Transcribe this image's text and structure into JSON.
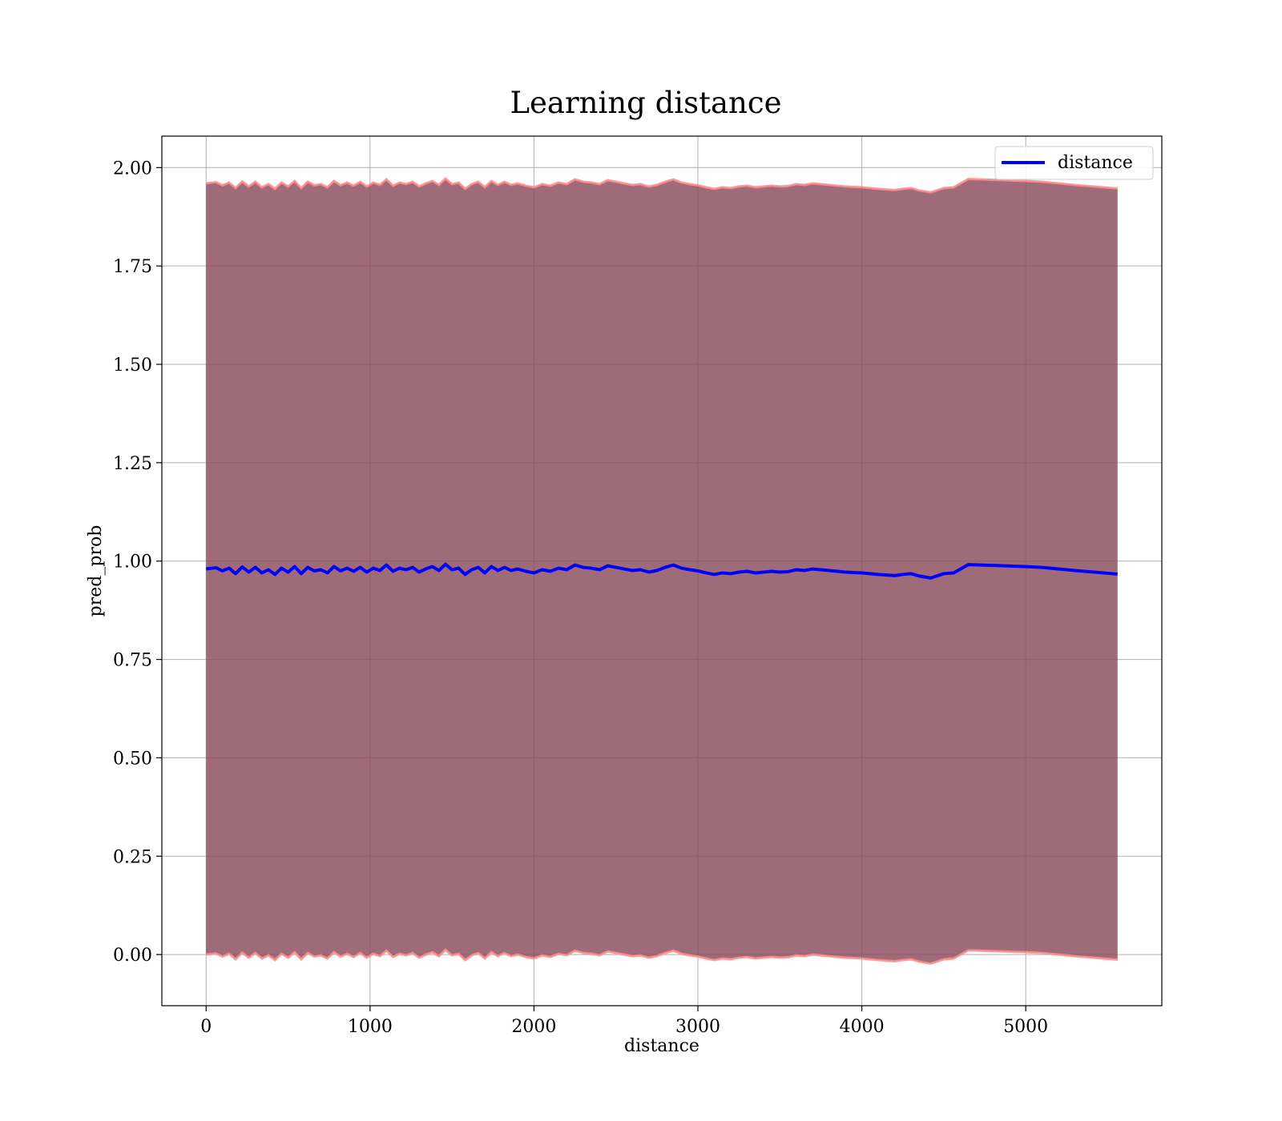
{
  "chart_data": {
    "type": "line",
    "title": "Learning distance",
    "xlabel": "distance",
    "ylabel": "pred_prob",
    "xlim": [
      -270,
      5830
    ],
    "ylim": [
      -0.13,
      2.08
    ],
    "xticks": [
      0,
      1000,
      2000,
      3000,
      4000,
      5000
    ],
    "xtick_labels": [
      "0",
      "1000",
      "2000",
      "3000",
      "4000",
      "5000"
    ],
    "yticks": [
      0.0,
      0.25,
      0.5,
      0.75,
      1.0,
      1.25,
      1.5,
      1.75,
      2.0
    ],
    "ytick_labels": [
      "0.00",
      "0.25",
      "0.50",
      "0.75",
      "1.00",
      "1.25",
      "1.50",
      "1.75",
      "2.00"
    ],
    "grid": true,
    "legend_position": "top-right",
    "colors": {
      "line": "#0000ff",
      "band_fill": "#8b4a5a",
      "band_edge": "#ff8c8c",
      "grid": "#b0b0b0",
      "frame": "#000000"
    },
    "series": [
      {
        "name": "distance",
        "type": "line",
        "x": [
          0,
          60,
          100,
          140,
          180,
          220,
          260,
          300,
          340,
          380,
          420,
          460,
          500,
          540,
          580,
          620,
          660,
          700,
          740,
          780,
          820,
          860,
          900,
          940,
          980,
          1020,
          1060,
          1100,
          1140,
          1180,
          1220,
          1260,
          1300,
          1340,
          1380,
          1420,
          1460,
          1500,
          1540,
          1580,
          1620,
          1660,
          1700,
          1740,
          1780,
          1820,
          1860,
          1900,
          1950,
          2000,
          2050,
          2100,
          2150,
          2200,
          2250,
          2300,
          2350,
          2400,
          2450,
          2500,
          2550,
          2600,
          2650,
          2700,
          2750,
          2800,
          2850,
          2900,
          2950,
          3000,
          3050,
          3100,
          3150,
          3200,
          3250,
          3300,
          3350,
          3400,
          3450,
          3500,
          3550,
          3600,
          3650,
          3700,
          3800,
          3900,
          4000,
          4100,
          4200,
          4250,
          4300,
          4350,
          4420,
          4500,
          4560,
          4650,
          4800,
          5000,
          5100,
          5300,
          5560
        ],
        "values": [
          0.98,
          0.983,
          0.975,
          0.982,
          0.968,
          0.985,
          0.972,
          0.984,
          0.97,
          0.978,
          0.966,
          0.982,
          0.972,
          0.986,
          0.968,
          0.984,
          0.975,
          0.978,
          0.97,
          0.986,
          0.975,
          0.982,
          0.974,
          0.984,
          0.972,
          0.982,
          0.976,
          0.99,
          0.974,
          0.982,
          0.978,
          0.984,
          0.972,
          0.98,
          0.986,
          0.976,
          0.992,
          0.978,
          0.982,
          0.966,
          0.978,
          0.984,
          0.97,
          0.986,
          0.976,
          0.984,
          0.976,
          0.98,
          0.974,
          0.97,
          0.978,
          0.974,
          0.982,
          0.978,
          0.99,
          0.984,
          0.982,
          0.978,
          0.988,
          0.984,
          0.98,
          0.976,
          0.978,
          0.972,
          0.976,
          0.984,
          0.99,
          0.982,
          0.978,
          0.975,
          0.97,
          0.966,
          0.97,
          0.968,
          0.972,
          0.974,
          0.97,
          0.972,
          0.974,
          0.972,
          0.973,
          0.978,
          0.976,
          0.98,
          0.976,
          0.972,
          0.97,
          0.966,
          0.963,
          0.966,
          0.968,
          0.962,
          0.957,
          0.968,
          0.97,
          0.991,
          0.989,
          0.986,
          0.984,
          0.976,
          0.967
        ]
      }
    ],
    "band": {
      "x": [
        0,
        60,
        100,
        140,
        180,
        220,
        260,
        300,
        340,
        380,
        420,
        460,
        500,
        540,
        580,
        620,
        660,
        700,
        740,
        780,
        820,
        860,
        900,
        940,
        980,
        1020,
        1060,
        1100,
        1140,
        1180,
        1220,
        1260,
        1300,
        1340,
        1380,
        1420,
        1460,
        1500,
        1540,
        1580,
        1620,
        1660,
        1700,
        1740,
        1780,
        1820,
        1860,
        1900,
        1950,
        2000,
        2050,
        2100,
        2150,
        2200,
        2250,
        2300,
        2350,
        2400,
        2450,
        2500,
        2550,
        2600,
        2650,
        2700,
        2750,
        2800,
        2850,
        2900,
        2950,
        3000,
        3050,
        3100,
        3150,
        3200,
        3250,
        3300,
        3350,
        3400,
        3450,
        3500,
        3550,
        3600,
        3650,
        3700,
        3800,
        3900,
        4000,
        4100,
        4200,
        4250,
        4300,
        4350,
        4420,
        4500,
        4560,
        4650,
        4800,
        5000,
        5100,
        5300,
        5560
      ],
      "upper": [
        1.96,
        1.963,
        1.955,
        1.962,
        1.948,
        1.965,
        1.952,
        1.964,
        1.95,
        1.958,
        1.946,
        1.962,
        1.952,
        1.966,
        1.948,
        1.964,
        1.955,
        1.958,
        1.95,
        1.966,
        1.955,
        1.962,
        1.954,
        1.964,
        1.952,
        1.962,
        1.956,
        1.97,
        1.954,
        1.962,
        1.958,
        1.964,
        1.952,
        1.96,
        1.966,
        1.956,
        1.972,
        1.958,
        1.962,
        1.946,
        1.958,
        1.964,
        1.95,
        1.966,
        1.956,
        1.964,
        1.956,
        1.96,
        1.954,
        1.95,
        1.958,
        1.954,
        1.962,
        1.958,
        1.97,
        1.964,
        1.962,
        1.958,
        1.968,
        1.964,
        1.96,
        1.956,
        1.958,
        1.952,
        1.956,
        1.964,
        1.97,
        1.962,
        1.958,
        1.955,
        1.95,
        1.946,
        1.95,
        1.948,
        1.952,
        1.954,
        1.95,
        1.952,
        1.954,
        1.952,
        1.953,
        1.958,
        1.956,
        1.96,
        1.956,
        1.952,
        1.95,
        1.946,
        1.943,
        1.946,
        1.948,
        1.942,
        1.937,
        1.948,
        1.95,
        1.971,
        1.969,
        1.966,
        1.964,
        1.956,
        1.947
      ],
      "lower": [
        0.0,
        0.003,
        -0.005,
        0.002,
        -0.012,
        0.005,
        -0.008,
        0.004,
        -0.01,
        -0.002,
        -0.014,
        0.002,
        -0.008,
        0.006,
        -0.012,
        0.004,
        -0.005,
        -0.002,
        -0.01,
        0.006,
        -0.005,
        0.002,
        -0.006,
        0.004,
        -0.008,
        0.002,
        -0.004,
        0.01,
        -0.006,
        0.002,
        -0.002,
        0.004,
        -0.008,
        0.0,
        0.006,
        -0.004,
        0.012,
        -0.002,
        0.002,
        -0.014,
        -0.002,
        0.004,
        -0.01,
        0.006,
        -0.004,
        0.004,
        -0.004,
        0.0,
        -0.006,
        -0.01,
        -0.002,
        -0.006,
        0.002,
        -0.002,
        0.01,
        0.004,
        0.002,
        -0.002,
        0.008,
        0.004,
        0.0,
        -0.004,
        -0.002,
        -0.008,
        -0.004,
        0.004,
        0.01,
        0.002,
        -0.002,
        -0.005,
        -0.01,
        -0.014,
        -0.01,
        -0.012,
        -0.008,
        -0.006,
        -0.01,
        -0.008,
        -0.006,
        -0.008,
        -0.007,
        -0.002,
        -0.004,
        0.0,
        -0.004,
        -0.008,
        -0.01,
        -0.014,
        -0.017,
        -0.014,
        -0.012,
        -0.018,
        -0.023,
        -0.012,
        -0.01,
        0.011,
        0.009,
        0.006,
        0.004,
        -0.004,
        -0.013
      ]
    }
  }
}
